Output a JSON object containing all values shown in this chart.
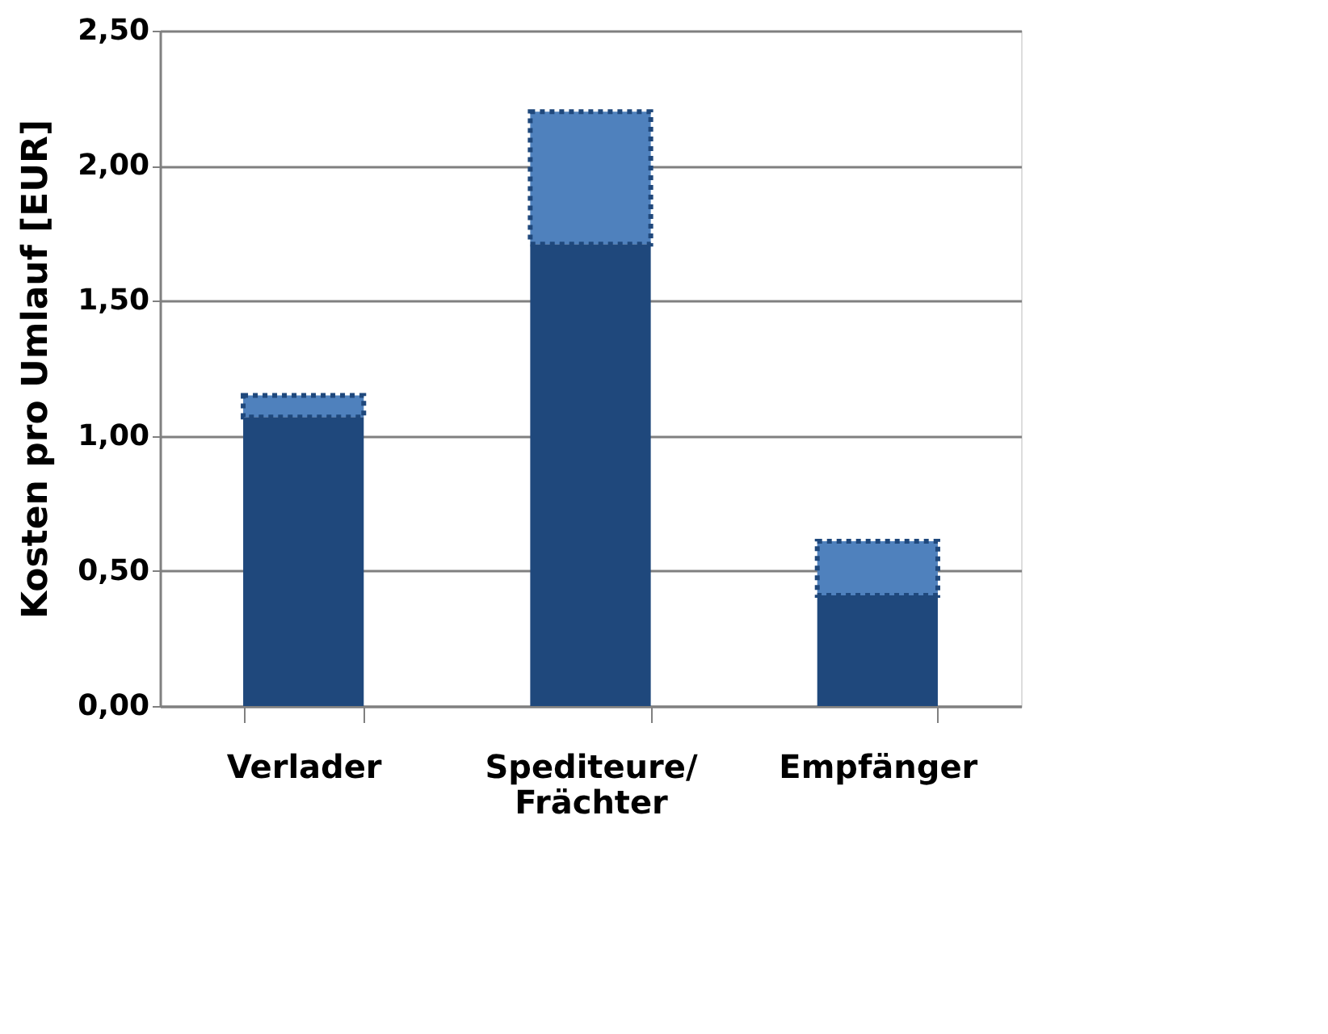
{
  "chart_data": {
    "type": "bar",
    "stacked": true,
    "ylabel": "Kosten pro Umlauf [EUR]",
    "categories": [
      "Verlader",
      "Spediteure/ Frächter",
      "Empfänger"
    ],
    "series": [
      {
        "color": "#1f487c",
        "values": [
          1.07,
          1.71,
          0.41
        ]
      },
      {
        "color": "#4f81bd",
        "values": [
          0.08,
          0.49,
          0.2
        ],
        "line_style": "dotted"
      }
    ],
    "ylim": [
      0,
      2.5
    ],
    "yticks": [
      {
        "value": 0,
        "label": "0,00"
      },
      {
        "value": 0.5,
        "label": "0,50"
      },
      {
        "value": 1.0,
        "label": "1,00"
      },
      {
        "value": 1.5,
        "label": "1,50"
      },
      {
        "value": 2.0,
        "label": "2,00"
      },
      {
        "value": 2.5,
        "label": "2,50"
      }
    ],
    "grid": "y"
  }
}
